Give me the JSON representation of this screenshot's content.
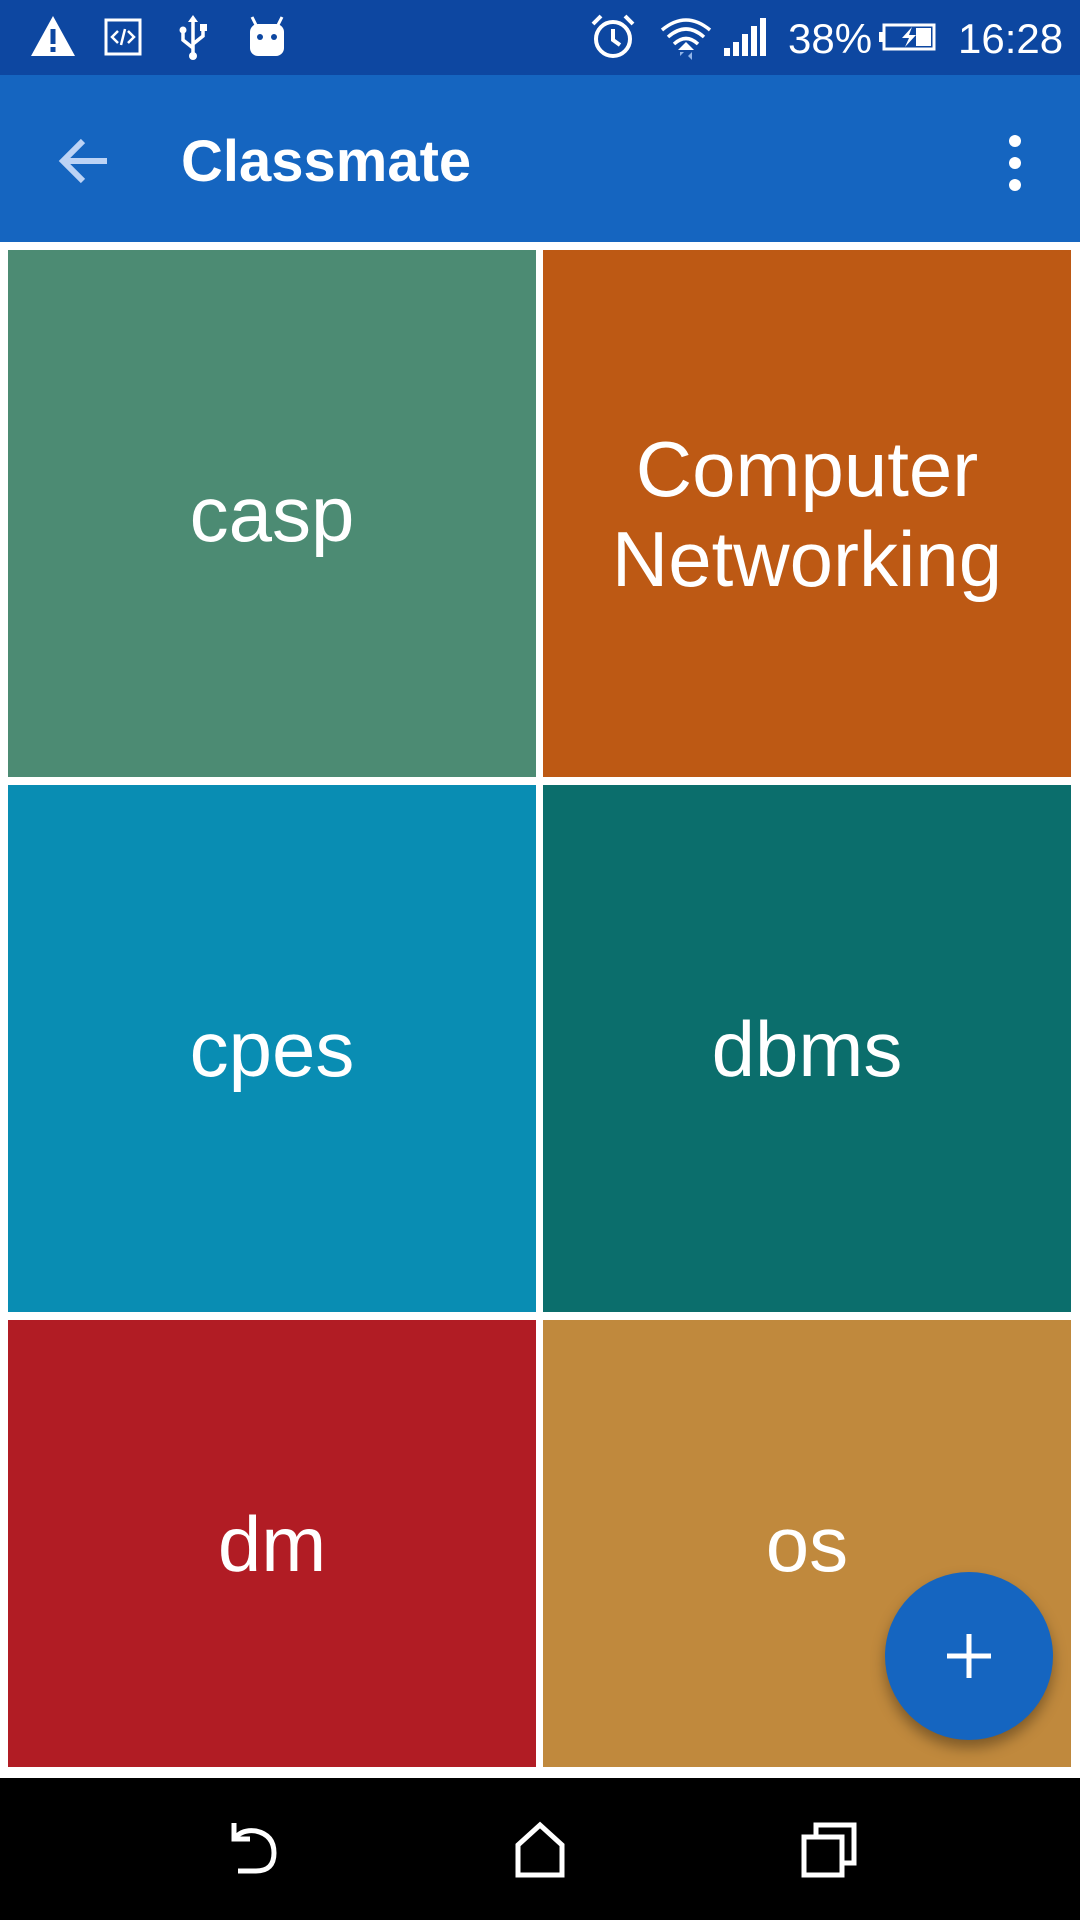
{
  "status_bar": {
    "icons_left": [
      "warning-icon",
      "developer-code-icon",
      "usb-icon",
      "android-icon"
    ],
    "icons_right": [
      "alarm-icon",
      "wifi-icon",
      "cell-signal-icon",
      "battery-charging-icon"
    ],
    "battery_percent": "38%",
    "time": "16:28"
  },
  "app_bar": {
    "title": "Classmate",
    "back_icon": "arrow-back-icon",
    "menu_icon": "more-vert-icon"
  },
  "subjects": [
    {
      "label": "casp",
      "color": "#4c8b73"
    },
    {
      "label": "Computer Networking",
      "color": "#bd5914"
    },
    {
      "label": "cpes",
      "color": "#098db3"
    },
    {
      "label": "dbms",
      "color": "#0b6e6c"
    },
    {
      "label": "dm",
      "color": "#b11c24"
    },
    {
      "label": "os",
      "color": "#c0893d"
    }
  ],
  "fab": {
    "icon": "add-icon",
    "color": "#1565c0"
  },
  "nav_bar": {
    "icons": [
      "back-nav-icon",
      "home-nav-icon",
      "recents-nav-icon"
    ]
  }
}
